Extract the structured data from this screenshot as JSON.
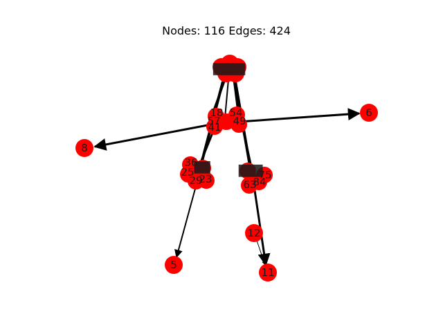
{
  "figure": {
    "title": "Nodes: 116 Edges: 424"
  },
  "graph": {
    "node_count": 116,
    "edge_count": 424,
    "node_color": "#ff0000",
    "edge_color": "#000000",
    "directed": true,
    "labeled_leaf_nodes": [
      "6",
      "8",
      "5",
      "12",
      "11"
    ],
    "visible_cluster_labels": [
      "18",
      "54",
      "57",
      "41",
      "49",
      "36",
      "23",
      "75",
      "84",
      "63",
      "25",
      "29"
    ]
  }
}
